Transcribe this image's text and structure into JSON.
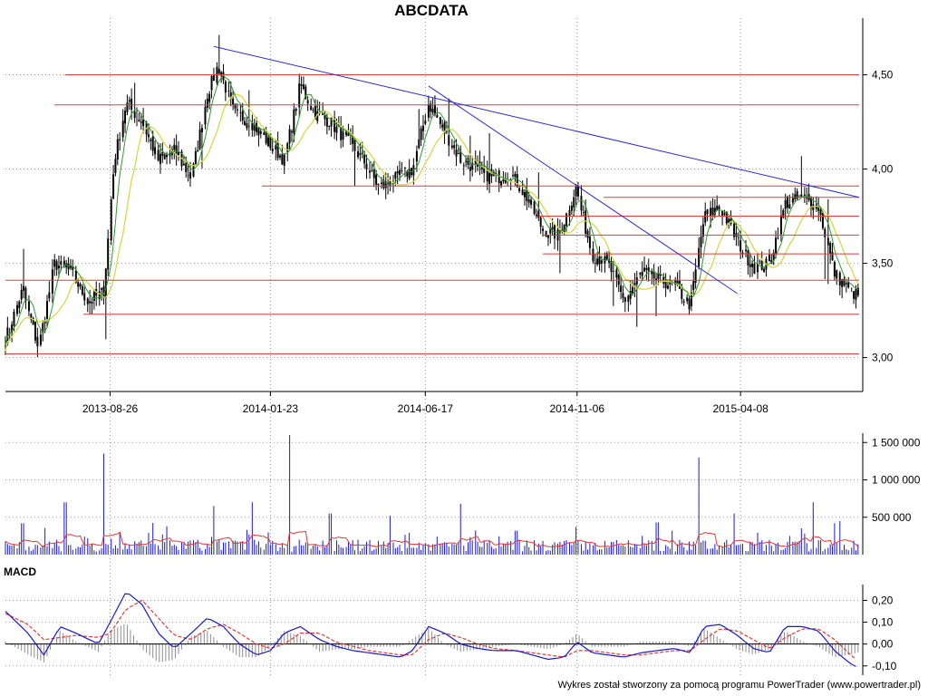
{
  "title": "ABCDATA",
  "footer": "Wykres został stworzony za pomocą programu PowerTrader (www.powertrader.pl)",
  "colors": {
    "candle": "#000000",
    "ma_fast": "#2e9b2e",
    "ma_slow": "#d8d84a",
    "support": "#e33a3a",
    "trend": "#2a2ad6",
    "volume": "#1a1ad0",
    "volume_ma": "#e33a3a",
    "macd": "#1a1ad0",
    "signal": "#e33a3a",
    "histogram": "#8c8c8c",
    "grid": "#999999"
  },
  "chart_data": [
    {
      "type": "line",
      "title": "ABCDATA",
      "x_ticks": [
        "2013-08-26",
        "2014-01-23",
        "2014-06-17",
        "2014-11-06",
        "2015-04-08"
      ],
      "y_ticks": [
        "3,00",
        "3,50",
        "4,00",
        "4,50"
      ],
      "ylim": [
        2.83,
        4.68
      ],
      "x_range": [
        "2013-05-20",
        "2015-07-28"
      ],
      "grid": true,
      "series": [
        {
          "values": [
            [
              "2013-05-20",
              3.1
            ],
            [
              "2013-06-05",
              3.36
            ],
            [
              "2013-06-20",
              3.05
            ],
            [
              "2013-07-05",
              3.5
            ],
            [
              "2013-07-20",
              3.46
            ],
            [
              "2013-08-05",
              3.3
            ],
            [
              "2013-08-20",
              3.35
            ],
            [
              "2013-08-30",
              4.05
            ],
            [
              "2013-09-10",
              4.35
            ],
            [
              "2013-09-25",
              4.25
            ],
            [
              "2013-10-10",
              4.05
            ],
            [
              "2013-10-25",
              4.1
            ],
            [
              "2013-11-10",
              3.95
            ],
            [
              "2013-11-25",
              4.4
            ],
            [
              "2013-12-05",
              4.55
            ],
            [
              "2013-12-20",
              4.3
            ],
            [
              "2014-01-05",
              4.25
            ],
            [
              "2014-01-20",
              4.15
            ],
            [
              "2014-02-05",
              4.05
            ],
            [
              "2014-02-20",
              4.45
            ],
            [
              "2014-03-05",
              4.3
            ],
            [
              "2014-03-20",
              4.25
            ],
            [
              "2014-04-05",
              4.15
            ],
            [
              "2014-04-20",
              4.05
            ],
            [
              "2014-05-05",
              3.9
            ],
            [
              "2014-05-20",
              3.95
            ],
            [
              "2014-06-05",
              4.0
            ],
            [
              "2014-06-20",
              4.35
            ],
            [
              "2014-07-05",
              4.2
            ],
            [
              "2014-07-20",
              4.05
            ],
            [
              "2014-08-05",
              4.0
            ],
            [
              "2014-08-20",
              3.95
            ],
            [
              "2014-09-05",
              3.98
            ],
            [
              "2014-09-20",
              3.85
            ],
            [
              "2014-10-05",
              3.68
            ],
            [
              "2014-10-20",
              3.65
            ],
            [
              "2014-11-05",
              3.9
            ],
            [
              "2014-11-20",
              3.55
            ],
            [
              "2014-12-05",
              3.5
            ],
            [
              "2014-12-20",
              3.3
            ],
            [
              "2015-01-05",
              3.45
            ],
            [
              "2015-01-20",
              3.42
            ],
            [
              "2015-02-05",
              3.38
            ],
            [
              "2015-02-20",
              3.28
            ],
            [
              "2015-03-05",
              3.75
            ],
            [
              "2015-03-20",
              3.8
            ],
            [
              "2015-04-05",
              3.62
            ],
            [
              "2015-04-20",
              3.48
            ],
            [
              "2015-05-05",
              3.5
            ],
            [
              "2015-05-20",
              3.82
            ],
            [
              "2015-06-05",
              3.85
            ],
            [
              "2015-06-20",
              3.8
            ],
            [
              "2015-07-05",
              3.45
            ],
            [
              "2015-07-20",
              3.35
            ],
            [
              "2015-07-28",
              3.33
            ]
          ]
        }
      ],
      "support_levels": [
        4.5,
        4.34,
        3.91,
        3.85,
        3.75,
        3.65,
        3.55,
        3.41,
        3.23,
        3.02
      ],
      "trend_lines": [
        [
          [
            "2013-12-01",
            4.65
          ],
          [
            "2015-07-28",
            3.85
          ]
        ],
        [
          [
            "2014-06-20",
            4.44
          ],
          [
            "2015-04-05",
            3.34
          ]
        ]
      ]
    },
    {
      "type": "bar",
      "y_ticks": [
        "500 000",
        "1 000 000",
        "1 500 000"
      ],
      "ylim": [
        0,
        1600000
      ],
      "spikes": [
        [
          "2013-06-05",
          420000
        ],
        [
          "2013-07-15",
          700000
        ],
        [
          "2013-08-20",
          1350000
        ],
        [
          "2013-12-01",
          650000
        ],
        [
          "2014-01-05",
          700000
        ],
        [
          "2014-02-10",
          1600000
        ],
        [
          "2014-03-20",
          550000
        ],
        [
          "2014-05-15",
          520000
        ],
        [
          "2014-07-20",
          680000
        ],
        [
          "2014-09-10",
          320000
        ],
        [
          "2015-01-20",
          430000
        ],
        [
          "2015-02-28",
          1300000
        ],
        [
          "2015-04-01",
          550000
        ],
        [
          "2015-06-15",
          700000
        ],
        [
          "2015-07-10",
          450000
        ]
      ]
    },
    {
      "type": "line",
      "title": "MACD",
      "y_ticks": [
        "-0,10",
        "0,00",
        "0,10",
        "0,20"
      ],
      "ylim": [
        -0.13,
        0.26
      ],
      "series": [
        {
          "values": [
            [
              "2013-05-20",
              0.15
            ],
            [
              "2013-06-10",
              0.05
            ],
            [
              "2013-06-25",
              -0.05
            ],
            [
              "2013-07-10",
              0.08
            ],
            [
              "2013-07-25",
              0.05
            ],
            [
              "2013-08-15",
              0.0
            ],
            [
              "2013-08-26",
              0.1
            ],
            [
              "2013-09-10",
              0.24
            ],
            [
              "2013-09-25",
              0.18
            ],
            [
              "2013-10-10",
              0.05
            ],
            [
              "2013-10-25",
              -0.02
            ],
            [
              "2013-11-10",
              0.05
            ],
            [
              "2013-11-25",
              0.12
            ],
            [
              "2013-12-10",
              0.08
            ],
            [
              "2013-12-25",
              0.0
            ],
            [
              "2014-01-10",
              -0.05
            ],
            [
              "2014-01-23",
              -0.03
            ],
            [
              "2014-02-05",
              0.05
            ],
            [
              "2014-02-20",
              0.08
            ],
            [
              "2014-03-10",
              0.02
            ],
            [
              "2014-03-25",
              -0.01
            ],
            [
              "2014-04-10",
              -0.03
            ],
            [
              "2014-04-25",
              -0.04
            ],
            [
              "2014-05-10",
              -0.05
            ],
            [
              "2014-05-25",
              -0.06
            ],
            [
              "2014-06-05",
              -0.03
            ],
            [
              "2014-06-20",
              0.08
            ],
            [
              "2014-07-05",
              0.05
            ],
            [
              "2014-07-20",
              0.0
            ],
            [
              "2014-08-05",
              -0.02
            ],
            [
              "2014-08-20",
              -0.03
            ],
            [
              "2014-09-10",
              -0.03
            ],
            [
              "2014-09-25",
              -0.05
            ],
            [
              "2014-10-10",
              -0.07
            ],
            [
              "2014-10-25",
              -0.06
            ],
            [
              "2014-11-06",
              0.01
            ],
            [
              "2014-11-20",
              -0.04
            ],
            [
              "2014-12-05",
              -0.05
            ],
            [
              "2014-12-20",
              -0.06
            ],
            [
              "2015-01-05",
              -0.04
            ],
            [
              "2015-01-20",
              -0.03
            ],
            [
              "2015-02-05",
              -0.02
            ],
            [
              "2015-02-20",
              -0.04
            ],
            [
              "2015-03-05",
              0.08
            ],
            [
              "2015-03-20",
              0.09
            ],
            [
              "2015-04-05",
              0.04
            ],
            [
              "2015-04-20",
              -0.02
            ],
            [
              "2015-05-05",
              -0.04
            ],
            [
              "2015-05-20",
              0.08
            ],
            [
              "2015-06-05",
              0.08
            ],
            [
              "2015-06-20",
              0.06
            ],
            [
              "2015-07-05",
              -0.03
            ],
            [
              "2015-07-20",
              -0.09
            ],
            [
              "2015-07-28",
              -0.11
            ]
          ]
        },
        {
          "values": [
            [
              "2013-05-20",
              0.14
            ],
            [
              "2013-06-10",
              0.09
            ],
            [
              "2013-06-25",
              0.02
            ],
            [
              "2013-07-10",
              0.03
            ],
            [
              "2013-07-25",
              0.04
            ],
            [
              "2013-08-15",
              0.03
            ],
            [
              "2013-08-26",
              0.05
            ],
            [
              "2013-09-10",
              0.16
            ],
            [
              "2013-09-25",
              0.2
            ],
            [
              "2013-10-10",
              0.12
            ],
            [
              "2013-10-25",
              0.04
            ],
            [
              "2013-11-10",
              0.02
            ],
            [
              "2013-11-25",
              0.07
            ],
            [
              "2013-12-10",
              0.09
            ],
            [
              "2013-12-25",
              0.05
            ],
            [
              "2014-01-10",
              0.0
            ],
            [
              "2014-01-23",
              -0.02
            ],
            [
              "2014-02-05",
              0.0
            ],
            [
              "2014-02-20",
              0.05
            ],
            [
              "2014-03-10",
              0.05
            ],
            [
              "2014-03-25",
              0.01
            ],
            [
              "2014-04-10",
              -0.01
            ],
            [
              "2014-04-25",
              -0.03
            ],
            [
              "2014-05-10",
              -0.04
            ],
            [
              "2014-05-25",
              -0.05
            ],
            [
              "2014-06-05",
              -0.05
            ],
            [
              "2014-06-20",
              0.02
            ],
            [
              "2014-07-05",
              0.05
            ],
            [
              "2014-07-20",
              0.03
            ],
            [
              "2014-08-05",
              0.0
            ],
            [
              "2014-08-20",
              -0.02
            ],
            [
              "2014-09-10",
              -0.03
            ],
            [
              "2014-09-25",
              -0.04
            ],
            [
              "2014-10-10",
              -0.05
            ],
            [
              "2014-10-25",
              -0.06
            ],
            [
              "2014-11-06",
              -0.03
            ],
            [
              "2014-11-20",
              -0.03
            ],
            [
              "2014-12-05",
              -0.04
            ],
            [
              "2014-12-20",
              -0.05
            ],
            [
              "2015-01-05",
              -0.05
            ],
            [
              "2015-01-20",
              -0.04
            ],
            [
              "2015-02-05",
              -0.03
            ],
            [
              "2015-02-20",
              -0.03
            ],
            [
              "2015-03-05",
              0.02
            ],
            [
              "2015-03-20",
              0.07
            ],
            [
              "2015-04-05",
              0.06
            ],
            [
              "2015-04-20",
              0.02
            ],
            [
              "2015-05-05",
              -0.02
            ],
            [
              "2015-05-20",
              0.03
            ],
            [
              "2015-06-05",
              0.07
            ],
            [
              "2015-06-20",
              0.07
            ],
            [
              "2015-07-05",
              0.02
            ],
            [
              "2015-07-20",
              -0.05
            ],
            [
              "2015-07-28",
              -0.08
            ]
          ]
        }
      ]
    }
  ]
}
